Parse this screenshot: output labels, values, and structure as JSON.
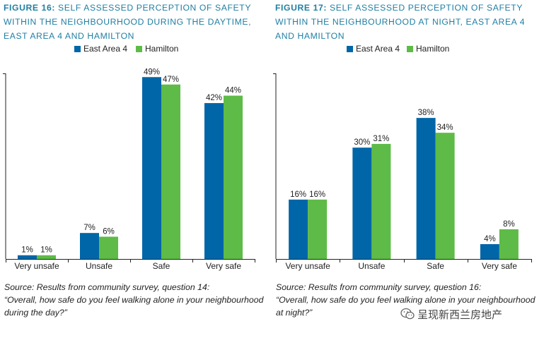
{
  "colors": {
    "title": "#1f7fa3",
    "east": "#0066a8",
    "hamilton": "#5ebb47",
    "axis": "#222222"
  },
  "figures": [
    {
      "title_bold": "FIGURE 16:",
      "title_rest": " SELF ASSESSED PERCEPTION OF SAFETY WITHIN THE NEIGHBOURHOOD DURING THE DAYTIME, EAST AREA 4 AND HAMILTON",
      "legend": [
        "East Area 4",
        "Hamilton"
      ],
      "source_line1": "Source: Results from community survey, question 14:",
      "source_line2": "“Overall, how safe do you feel walking alone in your neighbourhood during the day?”"
    },
    {
      "title_bold": "FIGURE 17:",
      "title_rest": " SELF ASSESSED PERCEPTION OF SAFETY WITHIN THE NEIGHBOURHOOD AT NIGHT, EAST AREA 4 AND HAMILTON",
      "legend": [
        "East Area 4",
        "Hamilton"
      ],
      "source_line1": "Source: Results from community survey, question 16:",
      "source_line2": "“Overall, how safe do you feel walking alone in your neighbourhood at night?”"
    }
  ],
  "chart_data": [
    {
      "type": "bar",
      "title": "FIGURE 16: SELF ASSESSED PERCEPTION OF SAFETY WITHIN THE NEIGHBOURHOOD DURING THE DAYTIME, EAST AREA 4 AND HAMILTON",
      "categories": [
        "Very unsafe",
        "Unsafe",
        "Safe",
        "Very safe"
      ],
      "series": [
        {
          "name": "East Area 4",
          "values": [
            1,
            7,
            49,
            42
          ],
          "labels": [
            "1%",
            "7%",
            "49%",
            "42%"
          ]
        },
        {
          "name": "Hamilton",
          "values": [
            1,
            6,
            47,
            44
          ],
          "labels": [
            "1%",
            "6%",
            "47%",
            "44%"
          ]
        }
      ],
      "ylim": [
        0,
        50
      ],
      "legend_position": "top",
      "grid": false
    },
    {
      "type": "bar",
      "title": "FIGURE 17: SELF ASSESSED PERCEPTION OF SAFETY WITHIN THE NEIGHBOURHOOD AT NIGHT, EAST AREA 4 AND HAMILTON",
      "categories": [
        "Very unsafe",
        "Unsafe",
        "Safe",
        "Very safe"
      ],
      "series": [
        {
          "name": "East Area 4",
          "values": [
            16,
            30,
            38,
            4
          ],
          "labels": [
            "16%",
            "30%",
            "38%",
            "4%"
          ]
        },
        {
          "name": "Hamilton",
          "values": [
            16,
            31,
            34,
            8
          ],
          "labels": [
            "16%",
            "31%",
            "34%",
            "8%"
          ]
        }
      ],
      "ylim": [
        0,
        50
      ],
      "legend_position": "top",
      "grid": false
    }
  ],
  "watermark": {
    "text": "呈现新西兰房地产",
    "icon": "wechat-icon"
  }
}
